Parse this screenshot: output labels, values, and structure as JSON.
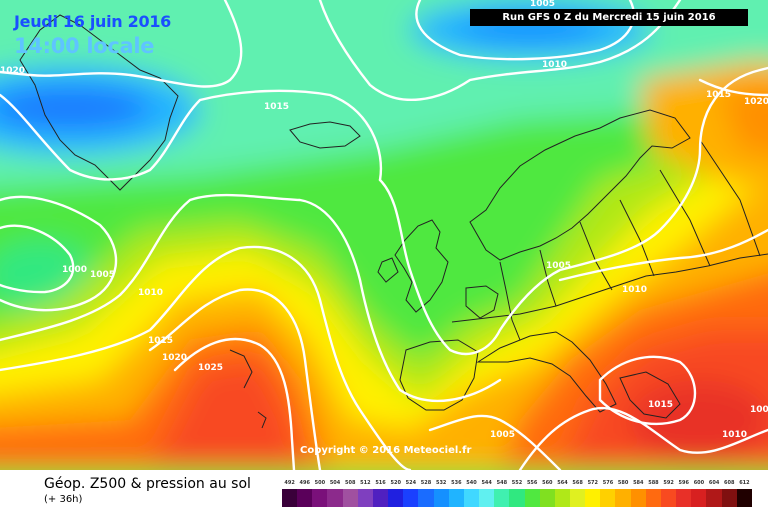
{
  "header": {
    "date": "Jeudi 16 juin 2016",
    "time": "14:00 locale",
    "run": "Run GFS 0 Z du Mercredi 15 juin 2016"
  },
  "copyright": "Copyright © 2016 Meteociel.fr",
  "legend": {
    "title": "Géop. Z500 & pression au sol",
    "subtitle": "(+ 36h)",
    "scale": [
      "492",
      "496",
      "500",
      "504",
      "508",
      "512",
      "516",
      "520",
      "524",
      "528",
      "532",
      "536",
      "540",
      "544",
      "548",
      "552",
      "556",
      "560",
      "564",
      "568",
      "572",
      "576",
      "580",
      "584",
      "588",
      "592",
      "596",
      "600",
      "604",
      "608",
      "612"
    ],
    "colors": [
      "#3a003a",
      "#5a005a",
      "#7a107a",
      "#8c2a8c",
      "#a050a0",
      "#7f3fbf",
      "#5020c0",
      "#2020e0",
      "#1a40ff",
      "#1a6cff",
      "#1590ff",
      "#20b4ff",
      "#40d8ff",
      "#60f0f0",
      "#40f0b0",
      "#30e880",
      "#50e840",
      "#80e020",
      "#b0e818",
      "#e0f020",
      "#fff000",
      "#ffd000",
      "#ffb000",
      "#ff9000",
      "#ff6a10",
      "#f84a20",
      "#e83028",
      "#d82020",
      "#b01818",
      "#801010",
      "#200000"
    ]
  },
  "isobars": [
    "1005",
    "1010",
    "1015",
    "1020",
    "1000",
    "1005",
    "1010",
    "1015",
    "1020",
    "1025",
    "1005",
    "1010",
    "1015",
    "1020",
    "1005",
    "1010",
    "1015",
    "1005",
    "1010",
    "1010",
    "1020"
  ]
}
